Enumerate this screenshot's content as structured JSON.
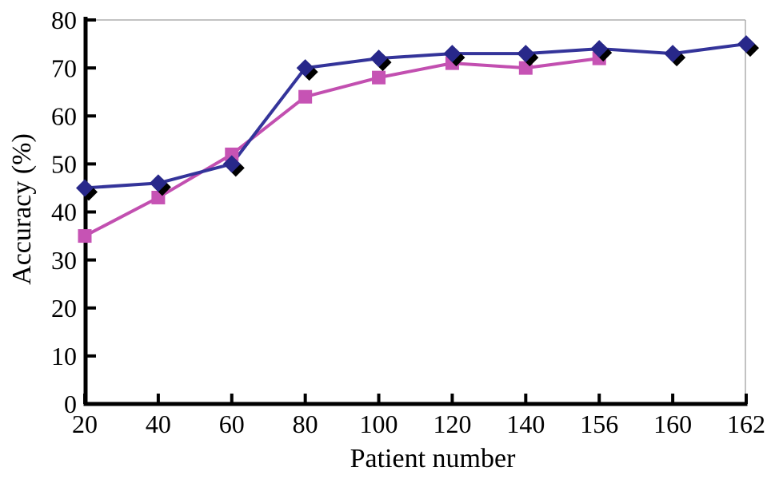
{
  "chart_data": {
    "type": "line",
    "title": "",
    "xlabel": "Patient number",
    "ylabel": "Accuracy (%)",
    "categories": [
      "20",
      "40",
      "60",
      "80",
      "100",
      "120",
      "140",
      "156",
      "160",
      "162"
    ],
    "ylim": [
      0,
      80
    ],
    "yticks": [
      0,
      10,
      20,
      30,
      40,
      50,
      60,
      70,
      80
    ],
    "legend": "none",
    "grid": "top-and-right-border-only",
    "colors": {
      "axis": "#000000",
      "plot_border": "#ADADAD",
      "marker_shadow": "#000000",
      "series_blue": "#28288A",
      "series_pink": "#C653B4"
    },
    "series": [
      {
        "marker": "square",
        "color": "#C653B4",
        "line_color": "#C24FB0",
        "shadow": false,
        "values": [
          35,
          43,
          52,
          64,
          68,
          71,
          70,
          72,
          null,
          null
        ]
      },
      {
        "marker": "diamond",
        "color": "#28288A",
        "line_color": "#34349A",
        "shadow": true,
        "values": [
          45,
          46,
          50,
          70,
          72,
          73,
          73,
          74,
          73,
          75
        ]
      }
    ]
  }
}
